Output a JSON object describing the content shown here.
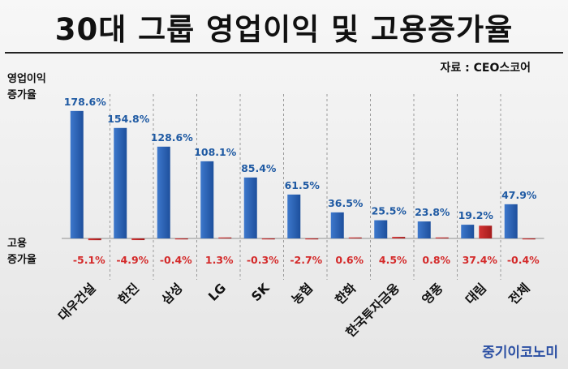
{
  "title": "30대 그룹 영업이익 및 고용증가율",
  "source": "자료 : CEO스코어",
  "publisher": "중기이코노미",
  "colors": {
    "profit_bar": "#3d78cc",
    "profit_bar_dark": "#1d4f9c",
    "employment_bar": "#d23333",
    "profit_label": "#1f5aa3",
    "employment_label": "#d42a2a"
  },
  "chart_data": {
    "type": "bar",
    "title": "30대 그룹 영업이익 및 고용증가율",
    "categories": [
      "대우건설",
      "한진",
      "삼성",
      "LG",
      "SK",
      "농협",
      "한화",
      "한국투자금융",
      "영풍",
      "대림",
      "전체"
    ],
    "series": [
      {
        "name": "영업이익 증가율",
        "values": [
          178.6,
          154.8,
          128.6,
          108.1,
          85.4,
          61.5,
          36.5,
          25.5,
          23.8,
          19.2,
          47.9
        ],
        "labels": [
          "178.6%",
          "154.8%",
          "128.6%",
          "108.1%",
          "85.4%",
          "61.5%",
          "36.5%",
          "25.5%",
          "23.8%",
          "19.2%",
          "47.9%"
        ]
      },
      {
        "name": "고용 증가율",
        "values": [
          -5.1,
          -4.9,
          -0.4,
          1.3,
          -0.3,
          -2.7,
          0.6,
          4.5,
          0.8,
          37.4,
          -0.4
        ],
        "labels": [
          "-5.1%",
          "-4.9%",
          "-0.4%",
          "1.3%",
          "-0.3%",
          "-2.7%",
          "0.6%",
          "4.5%",
          "0.8%",
          "37.4%",
          "-0.4%"
        ]
      }
    ],
    "axis_labels": {
      "upper": [
        "영업이익",
        "증가율"
      ],
      "lower": [
        "고용",
        "증가율"
      ]
    },
    "grid": false,
    "legend": "none"
  }
}
